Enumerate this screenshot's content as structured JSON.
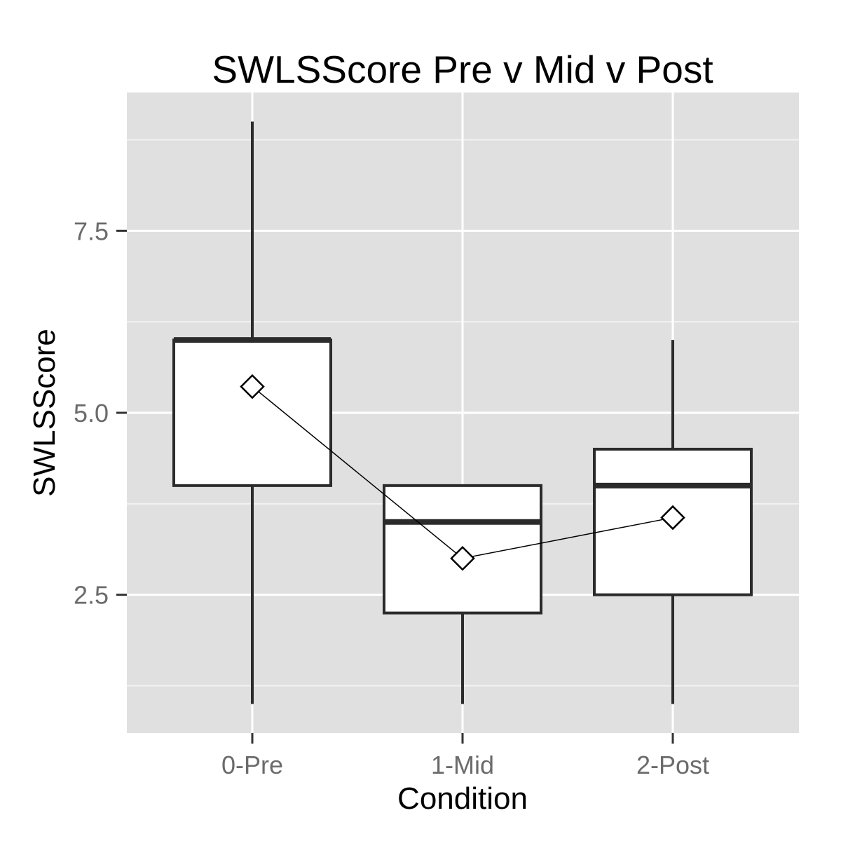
{
  "chart_data": {
    "type": "boxplot",
    "title": "SWLSScore Pre v Mid v Post",
    "xlabel": "Condition",
    "ylabel": "SWLSScore",
    "categories": [
      "0-Pre",
      "1-Mid",
      "2-Post"
    ],
    "ylim": [
      0.6,
      9.4
    ],
    "yticks": [
      2.5,
      5.0,
      7.5
    ],
    "ytick_labels": [
      "2.5",
      "5.0",
      "7.5"
    ],
    "y_minor_grid": [
      1.25,
      3.75,
      6.25,
      8.75
    ],
    "grid": true,
    "legend": "none",
    "boxes": [
      {
        "category": "0-Pre",
        "whisker_low": 1.0,
        "q1": 4.0,
        "median": 6.0,
        "q3": 6.0,
        "whisker_high": 9.0
      },
      {
        "category": "1-Mid",
        "whisker_low": 1.0,
        "q1": 2.25,
        "median": 3.5,
        "q3": 4.0,
        "whisker_high": 4.0
      },
      {
        "category": "2-Post",
        "whisker_low": 1.0,
        "q1": 2.5,
        "median": 4.0,
        "q3": 4.5,
        "whisker_high": 6.0
      }
    ],
    "mean_series": {
      "marker": "diamond",
      "values": [
        5.36,
        3.0,
        3.56
      ]
    },
    "colors": {
      "panel_background": "#e0e0e0",
      "grid_line": "#ffffff",
      "box_fill": "#ffffff",
      "box_stroke": "#2b2b2b",
      "mean_line": "#000000",
      "tick_text": "#6b6b6b"
    }
  }
}
